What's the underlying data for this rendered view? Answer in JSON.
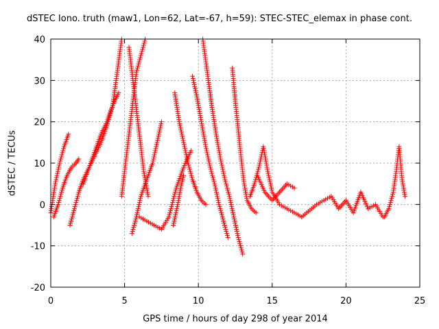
{
  "chart_data": {
    "type": "scatter",
    "title": "dSTEC Iono. truth (maw1, Lon=62, Lat=-67, h=59): STEC-STEC_elemax in phase cont.",
    "xlabel": "GPS time / hours of day 298 of year 2014",
    "ylabel": "dSTEC  / TECUs",
    "xlim": [
      0,
      25
    ],
    "ylim": [
      -20,
      40
    ],
    "xticks": [
      "0",
      "5",
      "10",
      "15",
      "20",
      "25"
    ],
    "yticks": [
      "-20",
      "-10",
      "0",
      "10",
      "20",
      "30",
      "40"
    ],
    "grid": true,
    "marker": "+",
    "color": "#ff0000",
    "series": [
      {
        "x": [
          0.0,
          0.3,
          0.6,
          0.9,
          1.2
        ],
        "y": [
          -2,
          5,
          10,
          14,
          17
        ]
      },
      {
        "x": [
          0.2,
          0.5,
          0.8,
          1.1,
          1.4,
          1.7,
          1.9
        ],
        "y": [
          -3,
          0,
          4,
          7,
          9,
          10,
          11
        ]
      },
      {
        "x": [
          1.3,
          1.6,
          1.9,
          2.2,
          2.6,
          3.0,
          3.4,
          3.8,
          4.2,
          4.5,
          4.8
        ],
        "y": [
          -5,
          -1,
          3,
          6,
          9,
          12,
          15,
          19,
          24,
          32,
          40
        ]
      },
      {
        "x": [
          2.2,
          2.6,
          3.0,
          3.4,
          3.8,
          4.2,
          4.6
        ],
        "y": [
          5,
          9,
          13,
          17,
          20,
          24,
          27
        ]
      },
      {
        "x": [
          4.8,
          5.0,
          5.2,
          5.4,
          5.6,
          5.8,
          6.1,
          6.4
        ],
        "y": [
          2,
          8,
          14,
          20,
          26,
          32,
          36,
          40
        ]
      },
      {
        "x": [
          5.3,
          5.5,
          5.7,
          5.9,
          6.1,
          6.3,
          6.6
        ],
        "y": [
          38,
          32,
          26,
          20,
          14,
          8,
          2
        ]
      },
      {
        "x": [
          5.5,
          5.8,
          6.1,
          6.5,
          6.9,
          7.2,
          7.5
        ],
        "y": [
          -7,
          -3,
          2,
          6,
          10,
          15,
          20
        ]
      },
      {
        "x": [
          6.0,
          6.5,
          7.0,
          7.5,
          8.0,
          8.5,
          9.0,
          9.5
        ],
        "y": [
          -3,
          -4,
          -5,
          -6,
          -3,
          4,
          9,
          13
        ]
      },
      {
        "x": [
          8.4,
          8.7,
          9.0,
          9.3,
          9.6,
          9.9,
          10.2,
          10.5
        ],
        "y": [
          27,
          20,
          15,
          10,
          6,
          3,
          1,
          0
        ]
      },
      {
        "x": [
          8.3,
          8.6,
          8.8,
          9.0
        ],
        "y": [
          -5,
          0,
          4,
          7
        ]
      },
      {
        "x": [
          9.6,
          9.9,
          10.2,
          10.5,
          10.8,
          11.1,
          11.4,
          11.7,
          12.0
        ],
        "y": [
          31,
          26,
          20,
          14,
          9,
          5,
          0,
          -4,
          -8
        ]
      },
      {
        "x": [
          10.3,
          10.6,
          10.9,
          11.2,
          11.5,
          11.8,
          12.1,
          12.4,
          12.7,
          13.0
        ],
        "y": [
          40,
          32,
          24,
          17,
          11,
          6,
          2,
          -3,
          -8,
          -12
        ]
      },
      {
        "x": [
          12.3,
          12.5,
          12.7,
          12.9,
          13.1,
          13.3,
          13.6,
          13.9
        ],
        "y": [
          33,
          25,
          18,
          11,
          5,
          1,
          -1,
          -2
        ]
      },
      {
        "x": [
          13.5,
          13.8,
          14.1,
          14.4,
          14.7,
          15.0,
          15.5,
          16.0,
          16.5,
          17.0
        ],
        "y": [
          2,
          5,
          9,
          14,
          8,
          3,
          0,
          -1,
          -2,
          -3
        ]
      },
      {
        "x": [
          14.0,
          14.5,
          15.0,
          15.5,
          16.0,
          16.5
        ],
        "y": [
          7,
          3,
          1,
          3,
          5,
          4
        ]
      },
      {
        "x": [
          17.0,
          18.0,
          19.0,
          19.5,
          20.0,
          20.5,
          21.0,
          21.5,
          22.0,
          22.5
        ],
        "y": [
          -3,
          0,
          2,
          -1,
          1,
          -2,
          3,
          -1,
          0,
          -3
        ]
      },
      {
        "x": [
          22.6,
          22.9,
          23.2,
          23.4,
          23.6,
          23.8,
          24.0
        ],
        "y": [
          -3,
          -1,
          3,
          8,
          14,
          6,
          2
        ]
      }
    ]
  }
}
